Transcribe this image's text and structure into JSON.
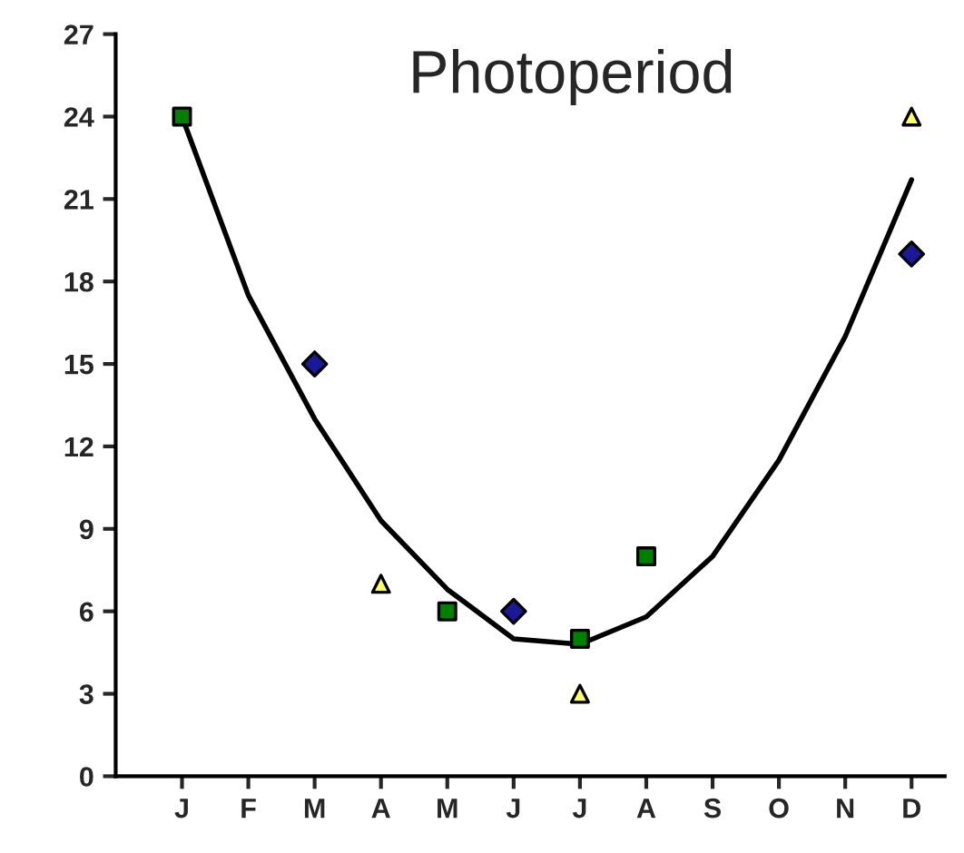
{
  "chart_data": {
    "type": "scatter",
    "title": "Photoperiod",
    "categories": [
      "J",
      "F",
      "M",
      "A",
      "M",
      "J",
      "J",
      "A",
      "S",
      "O",
      "N",
      "D"
    ],
    "ylim": [
      0,
      27
    ],
    "yticks": [
      0,
      3,
      6,
      9,
      12,
      15,
      18,
      21,
      24,
      27
    ],
    "grid": false,
    "legend": false,
    "series": [
      {
        "type": "line",
        "color": "#000000",
        "marker": "none",
        "values": [
          24,
          17.5,
          13,
          9.3,
          6.8,
          5.0,
          4.8,
          5.8,
          8,
          11.5,
          16,
          21.7
        ]
      },
      {
        "color": "#008000",
        "marker": "square",
        "values": [
          24,
          null,
          null,
          null,
          6,
          null,
          5,
          8,
          null,
          null,
          null,
          null
        ]
      },
      {
        "color": "#1a1a99",
        "marker": "diamond",
        "values": [
          null,
          null,
          15,
          null,
          null,
          6,
          null,
          null,
          null,
          null,
          null,
          19
        ]
      },
      {
        "color": "#ffff66",
        "marker": "triangle",
        "values": [
          null,
          null,
          null,
          7,
          null,
          null,
          3,
          null,
          null,
          null,
          null,
          24
        ]
      }
    ]
  }
}
